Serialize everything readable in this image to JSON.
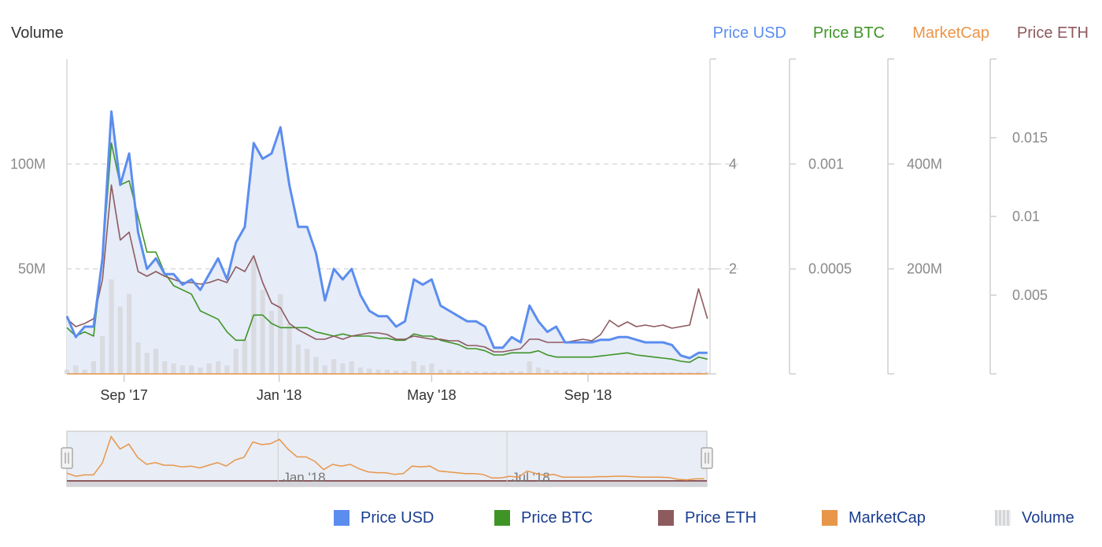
{
  "header": {
    "volume_title": "Volume",
    "axis_titles": [
      {
        "key": "usd",
        "label": "Price USD",
        "color": "#5b8def"
      },
      {
        "key": "btc",
        "label": "Price BTC",
        "color": "#3f9426"
      },
      {
        "key": "mcap",
        "label": "MarketCap",
        "color": "#e8964a"
      },
      {
        "key": "eth",
        "label": "Price ETH",
        "color": "#8d5a5e"
      }
    ]
  },
  "legend": [
    {
      "label": "Price USD",
      "color": "#5b8def"
    },
    {
      "label": "Price BTC",
      "color": "#3f9426"
    },
    {
      "label": "Price ETH",
      "color": "#8d5a5e"
    },
    {
      "label": "MarketCap",
      "color": "#e8964a"
    },
    {
      "label": "Volume",
      "color": "#d7d9de"
    }
  ],
  "chart_data": {
    "type": "line",
    "title": "",
    "x_ticks": [
      "Sep '17",
      "Jan '18",
      "May '18",
      "Sep '18"
    ],
    "x_ticks_at": [
      "2017-09-01",
      "2018-01-01",
      "2018-05-01",
      "2018-09-01"
    ],
    "x_range": [
      "2017-07-18",
      "2018-12-06"
    ],
    "grid": true,
    "legend_position": "bottom",
    "axes": {
      "volume": {
        "ticks": [
          "50M",
          "100M"
        ],
        "tick_values": [
          50000000,
          100000000
        ],
        "range": [
          0,
          150000000
        ]
      },
      "usd": {
        "ticks": [
          "2",
          "4"
        ],
        "tick_values": [
          2,
          4
        ],
        "range": [
          0,
          6
        ]
      },
      "btc": {
        "ticks": [
          "0.0005",
          "0.001"
        ],
        "tick_values": [
          0.0005,
          0.001
        ],
        "range": [
          0,
          0.0015
        ]
      },
      "mcap": {
        "ticks": [
          "200M",
          "400M"
        ],
        "tick_values": [
          200000000,
          400000000
        ],
        "range": [
          0,
          600000000
        ]
      },
      "eth": {
        "ticks": [
          "0.005",
          "0.01",
          "0.015"
        ],
        "tick_values": [
          0.005,
          0.01,
          0.015
        ],
        "range": [
          0,
          0.02
        ]
      }
    },
    "dates": [
      "2017-07-18",
      "2017-07-25",
      "2017-08-01",
      "2017-08-08",
      "2017-08-15",
      "2017-08-22",
      "2017-08-29",
      "2017-09-05",
      "2017-09-12",
      "2017-09-19",
      "2017-09-26",
      "2017-10-03",
      "2017-10-10",
      "2017-10-17",
      "2017-10-24",
      "2017-10-31",
      "2017-11-07",
      "2017-11-14",
      "2017-11-21",
      "2017-11-28",
      "2017-12-05",
      "2017-12-12",
      "2017-12-19",
      "2017-12-26",
      "2018-01-02",
      "2018-01-09",
      "2018-01-16",
      "2018-01-23",
      "2018-01-30",
      "2018-02-06",
      "2018-02-13",
      "2018-02-20",
      "2018-02-27",
      "2018-03-06",
      "2018-03-13",
      "2018-03-20",
      "2018-03-27",
      "2018-04-03",
      "2018-04-10",
      "2018-04-17",
      "2018-04-24",
      "2018-05-01",
      "2018-05-08",
      "2018-05-15",
      "2018-05-22",
      "2018-05-29",
      "2018-06-05",
      "2018-06-12",
      "2018-06-19",
      "2018-06-26",
      "2018-07-03",
      "2018-07-10",
      "2018-07-17",
      "2018-07-24",
      "2018-07-31",
      "2018-08-07",
      "2018-08-14",
      "2018-08-21",
      "2018-08-28",
      "2018-09-04",
      "2018-09-11",
      "2018-09-18",
      "2018-09-25",
      "2018-10-02",
      "2018-10-09",
      "2018-10-16",
      "2018-10-23",
      "2018-10-30",
      "2018-11-06",
      "2018-11-13",
      "2018-11-20",
      "2018-11-27",
      "2018-12-04"
    ],
    "series": [
      {
        "name": "Price USD",
        "axis": "usd",
        "color": "#5b8def",
        "width": 3.0,
        "values": [
          1.1,
          0.7,
          0.9,
          0.9,
          2.2,
          5.0,
          3.6,
          4.2,
          2.7,
          2.0,
          2.2,
          1.9,
          1.9,
          1.7,
          1.8,
          1.6,
          1.9,
          2.2,
          1.8,
          2.5,
          2.8,
          4.4,
          4.1,
          4.2,
          4.7,
          3.6,
          2.8,
          2.8,
          2.3,
          1.4,
          2.0,
          1.8,
          2.0,
          1.5,
          1.2,
          1.1,
          1.1,
          0.9,
          1.0,
          1.8,
          1.7,
          1.8,
          1.3,
          1.2,
          1.1,
          1.0,
          1.0,
          0.9,
          0.5,
          0.5,
          0.7,
          0.6,
          1.3,
          1.0,
          0.8,
          0.9,
          0.6,
          0.6,
          0.6,
          0.6,
          0.65,
          0.65,
          0.7,
          0.7,
          0.65,
          0.6,
          0.6,
          0.6,
          0.55,
          0.35,
          0.3,
          0.4,
          0.4
        ]
      },
      {
        "name": "MarketCap",
        "axis": "mcap",
        "color": "#e8964a",
        "width": 1.6,
        "values": [
          46,
          32,
          38,
          38,
          92,
          212,
          156,
          178,
          117,
          86,
          94,
          82,
          82,
          74,
          78,
          70,
          82,
          94,
          78,
          106,
          118,
          188,
          176,
          180,
          200,
          154,
          120,
          120,
          100,
          62,
          86,
          78,
          86,
          66,
          52,
          48,
          48,
          40,
          44,
          78,
          74,
          78,
          56,
          52,
          48,
          44,
          44,
          40,
          24,
          24,
          32,
          28,
          56,
          44,
          36,
          40,
          28,
          28,
          28,
          28,
          30,
          30,
          32,
          32,
          30,
          28,
          28,
          28,
          26,
          18,
          15,
          20,
          20
        ]
      },
      {
        "name": "Price BTC",
        "axis": "btc",
        "color": "#3f9426",
        "width": 1.6,
        "values": [
          0.00022,
          0.00018,
          0.0002,
          0.00018,
          0.00055,
          0.0011,
          0.0009,
          0.00092,
          0.00075,
          0.00058,
          0.00058,
          0.00048,
          0.00042,
          0.0004,
          0.00038,
          0.0003,
          0.00028,
          0.00026,
          0.0002,
          0.00016,
          0.00016,
          0.00028,
          0.00028,
          0.00024,
          0.00022,
          0.00022,
          0.00022,
          0.00022,
          0.0002,
          0.00019,
          0.00018,
          0.00019,
          0.00018,
          0.00018,
          0.00018,
          0.00017,
          0.00017,
          0.00016,
          0.00016,
          0.00019,
          0.00018,
          0.00018,
          0.00016,
          0.00015,
          0.00014,
          0.00012,
          0.00012,
          0.00011,
          9e-05,
          9e-05,
          0.0001,
          0.0001,
          0.0001,
          0.00011,
          9e-05,
          8e-05,
          8e-05,
          8e-05,
          8e-05,
          8e-05,
          8.5e-05,
          9e-05,
          9.5e-05,
          0.0001,
          9e-05,
          8.5e-05,
          8e-05,
          7.5e-05,
          7e-05,
          6e-05,
          5.5e-05,
          8e-05,
          7e-05
        ]
      },
      {
        "name": "Price ETH",
        "axis": "eth",
        "color": "#8d5a5e",
        "width": 1.6,
        "values": [
          0.0035,
          0.003,
          0.0032,
          0.0035,
          0.006,
          0.012,
          0.0085,
          0.009,
          0.0065,
          0.0062,
          0.0065,
          0.0062,
          0.006,
          0.0058,
          0.0058,
          0.0057,
          0.0058,
          0.006,
          0.0058,
          0.0068,
          0.0065,
          0.0075,
          0.0058,
          0.0045,
          0.0042,
          0.0032,
          0.0028,
          0.0025,
          0.0022,
          0.0022,
          0.0024,
          0.0022,
          0.0024,
          0.0025,
          0.0026,
          0.0026,
          0.0025,
          0.0022,
          0.0022,
          0.0024,
          0.0023,
          0.0022,
          0.0022,
          0.0021,
          0.0021,
          0.0018,
          0.0018,
          0.0017,
          0.0014,
          0.0014,
          0.0015,
          0.0016,
          0.0022,
          0.0022,
          0.002,
          0.002,
          0.002,
          0.0021,
          0.0022,
          0.0021,
          0.0025,
          0.0034,
          0.003,
          0.0033,
          0.003,
          0.0031,
          0.003,
          0.0031,
          0.0029,
          0.003,
          0.0031,
          0.0054,
          0.0035
        ]
      },
      {
        "name": "Volume",
        "axis": "volume",
        "color": "#d7d9de",
        "type": "column",
        "values": [
          2000000,
          4000000,
          2000000,
          6000000,
          18000000,
          45000000,
          32000000,
          38000000,
          15000000,
          10000000,
          12000000,
          6000000,
          5000000,
          4000000,
          4000000,
          3000000,
          5000000,
          6000000,
          4000000,
          12000000,
          16000000,
          55000000,
          40000000,
          30000000,
          38000000,
          24000000,
          14000000,
          12000000,
          8000000,
          4000000,
          7000000,
          5000000,
          6000000,
          3000000,
          2500000,
          2000000,
          2000000,
          1500000,
          1500000,
          6000000,
          4000000,
          5000000,
          2000000,
          2000000,
          1500000,
          1200000,
          1200000,
          1000000,
          1000000,
          900000,
          1500000,
          1200000,
          6000000,
          3000000,
          2000000,
          1500000,
          1000000,
          1000000,
          900000,
          900000,
          900000,
          900000,
          1000000,
          1000000,
          900000,
          800000,
          800000,
          800000,
          800000,
          700000,
          700000,
          900000,
          800000
        ]
      }
    ],
    "area": {
      "axis": "usd",
      "source": "Price USD",
      "color": "#e6ecf8"
    },
    "navigator": {
      "ticks": [
        "Jan '18",
        "Jul '18"
      ],
      "ticks_at": [
        "2018-01-01",
        "2018-07-01"
      ],
      "series": "MarketCap"
    }
  }
}
